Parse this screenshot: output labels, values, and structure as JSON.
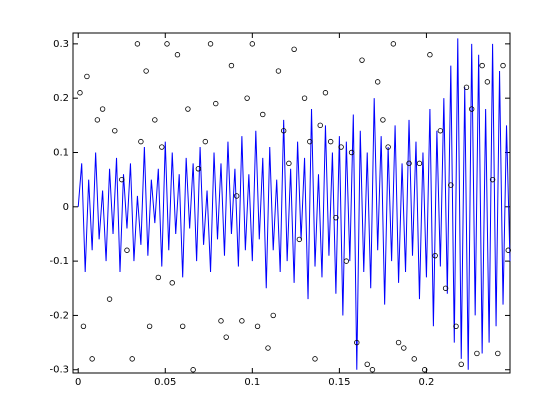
{
  "chart_data": {
    "type": "line_scatter",
    "xlim": [
      -0.003,
      0.248
    ],
    "ylim": [
      -0.306,
      0.32
    ],
    "xticks": [
      0,
      0.05,
      0.1,
      0.15,
      0.2
    ],
    "yticks": [
      -0.3,
      -0.2,
      -0.1,
      0,
      0.1,
      0.2,
      0.3
    ],
    "series": [
      {
        "type": "line",
        "color": "#0000ff",
        "x": [
          0,
          0.002,
          0.004,
          0.006,
          0.008,
          0.01,
          0.012,
          0.014,
          0.016,
          0.018,
          0.02,
          0.022,
          0.024,
          0.026,
          0.028,
          0.03,
          0.032,
          0.034,
          0.036,
          0.038,
          0.04,
          0.042,
          0.044,
          0.046,
          0.048,
          0.05,
          0.052,
          0.054,
          0.056,
          0.058,
          0.06,
          0.062,
          0.064,
          0.066,
          0.068,
          0.07,
          0.072,
          0.074,
          0.076,
          0.078,
          0.08,
          0.082,
          0.084,
          0.086,
          0.088,
          0.09,
          0.092,
          0.094,
          0.096,
          0.098,
          0.1,
          0.102,
          0.104,
          0.106,
          0.108,
          0.11,
          0.112,
          0.114,
          0.116,
          0.118,
          0.12,
          0.122,
          0.124,
          0.126,
          0.128,
          0.13,
          0.132,
          0.134,
          0.136,
          0.138,
          0.14,
          0.142,
          0.144,
          0.146,
          0.148,
          0.15,
          0.152,
          0.154,
          0.156,
          0.158,
          0.16,
          0.162,
          0.164,
          0.166,
          0.168,
          0.17,
          0.172,
          0.174,
          0.176,
          0.178,
          0.18,
          0.182,
          0.184,
          0.186,
          0.188,
          0.19,
          0.192,
          0.194,
          0.196,
          0.198,
          0.2,
          0.202,
          0.204,
          0.206,
          0.208,
          0.21,
          0.212,
          0.214,
          0.216,
          0.218,
          0.22,
          0.222,
          0.224,
          0.226,
          0.228,
          0.23,
          0.232,
          0.234,
          0.236,
          0.238,
          0.24,
          0.242,
          0.244,
          0.246,
          0.248
        ],
        "values": [
          0.0,
          0.08,
          -0.12,
          0.05,
          -0.08,
          0.1,
          -0.06,
          0.03,
          -0.1,
          0.07,
          -0.05,
          0.09,
          -0.12,
          0.06,
          -0.04,
          0.08,
          -0.1,
          0.02,
          -0.07,
          0.11,
          -0.09,
          0.05,
          -0.03,
          0.07,
          -0.11,
          0.12,
          -0.08,
          0.1,
          -0.05,
          0.06,
          -0.13,
          0.09,
          -0.04,
          0.08,
          -0.1,
          0.11,
          -0.07,
          0.03,
          -0.12,
          0.1,
          -0.06,
          0.08,
          -0.09,
          0.12,
          -0.05,
          0.07,
          -0.11,
          0.13,
          -0.08,
          0.06,
          -0.1,
          0.14,
          -0.06,
          0.09,
          -0.15,
          0.11,
          -0.08,
          0.05,
          -0.12,
          0.16,
          -0.1,
          0.07,
          -0.14,
          0.12,
          -0.06,
          0.09,
          -0.17,
          0.18,
          -0.11,
          0.06,
          -0.13,
          0.15,
          -0.09,
          0.1,
          -0.16,
          0.13,
          -0.2,
          0.12,
          -0.1,
          0.17,
          -0.3,
          0.14,
          -0.12,
          0.1,
          -0.15,
          0.2,
          -0.08,
          0.13,
          -0.18,
          0.11,
          -0.1,
          0.15,
          -0.14,
          0.08,
          -0.12,
          0.16,
          -0.09,
          0.12,
          -0.17,
          0.1,
          -0.13,
          0.18,
          -0.22,
          0.14,
          -0.11,
          0.2,
          -0.16,
          0.26,
          -0.25,
          0.31,
          -0.28,
          0.22,
          -0.3,
          0.3,
          -0.2,
          0.28,
          -0.27,
          0.18,
          -0.25,
          0.3,
          -0.22,
          0.25,
          -0.18,
          0.15,
          -0.1
        ]
      },
      {
        "type": "scatter",
        "color": "#000000",
        "x": [
          0.001,
          0.003,
          0.005,
          0.008,
          0.011,
          0.014,
          0.018,
          0.021,
          0.025,
          0.028,
          0.031,
          0.034,
          0.036,
          0.039,
          0.041,
          0.044,
          0.046,
          0.048,
          0.051,
          0.054,
          0.057,
          0.06,
          0.063,
          0.066,
          0.069,
          0.073,
          0.076,
          0.079,
          0.082,
          0.085,
          0.088,
          0.091,
          0.094,
          0.097,
          0.1,
          0.103,
          0.106,
          0.109,
          0.112,
          0.115,
          0.118,
          0.121,
          0.124,
          0.127,
          0.13,
          0.133,
          0.136,
          0.139,
          0.142,
          0.145,
          0.148,
          0.151,
          0.154,
          0.157,
          0.16,
          0.163,
          0.166,
          0.169,
          0.172,
          0.175,
          0.178,
          0.181,
          0.184,
          0.187,
          0.19,
          0.193,
          0.196,
          0.199,
          0.202,
          0.205,
          0.208,
          0.211,
          0.214,
          0.217,
          0.22,
          0.223,
          0.226,
          0.229,
          0.232,
          0.235,
          0.238,
          0.241,
          0.244,
          0.247
        ],
        "values": [
          0.21,
          -0.22,
          0.24,
          -0.28,
          0.16,
          0.18,
          -0.17,
          0.14,
          0.05,
          -0.08,
          -0.28,
          0.3,
          0.12,
          0.25,
          -0.22,
          0.16,
          -0.13,
          0.11,
          0.3,
          -0.14,
          0.28,
          -0.22,
          0.18,
          -0.3,
          0.07,
          0.12,
          0.3,
          0.19,
          -0.21,
          -0.24,
          0.26,
          0.02,
          -0.21,
          0.2,
          0.3,
          -0.22,
          0.17,
          -0.26,
          -0.2,
          0.25,
          0.14,
          0.08,
          0.29,
          -0.06,
          0.2,
          0.12,
          -0.28,
          0.15,
          0.21,
          0.12,
          -0.02,
          0.11,
          -0.1,
          0.1,
          -0.25,
          0.27,
          -0.29,
          -0.3,
          0.23,
          0.16,
          0.11,
          0.3,
          -0.25,
          -0.26,
          0.08,
          -0.28,
          0.08,
          -0.3,
          0.28,
          -0.09,
          0.14,
          -0.15,
          0.04,
          -0.22,
          -0.29,
          0.22,
          0.18,
          -0.27,
          0.26,
          0.23,
          0.05,
          -0.27,
          0.26,
          -0.08
        ]
      }
    ]
  }
}
